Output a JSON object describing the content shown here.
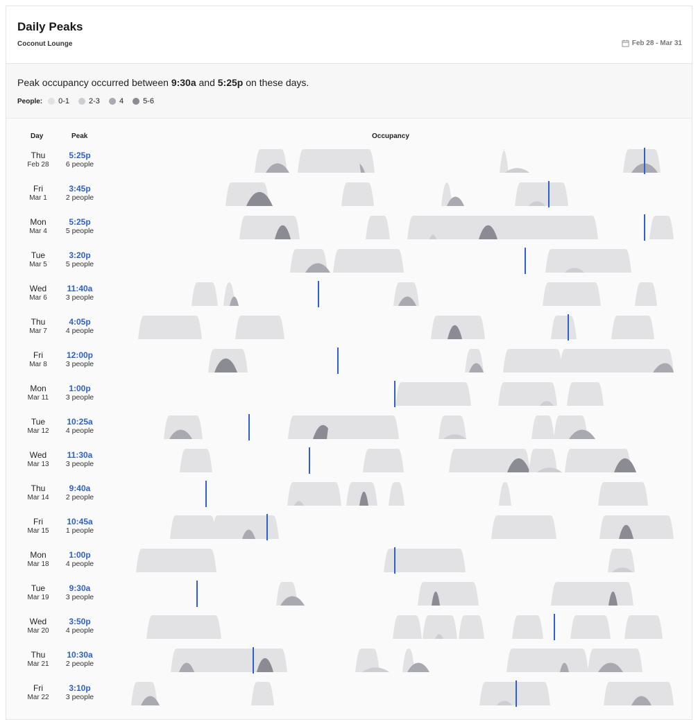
{
  "header": {
    "title": "Daily Peaks",
    "subtitle": "Coconut Lounge",
    "date_range": "Feb 28 - Mar 31",
    "calendar_icon": "calendar-icon"
  },
  "summary": {
    "prefix": "Peak occupancy occurred between",
    "start": "9:30a",
    "middle": "and",
    "end": "5:25p",
    "suffix": "on these days."
  },
  "legend": {
    "label": "People:",
    "items": [
      {
        "label": "0-1",
        "color": "#e2e2e4"
      },
      {
        "label": "2-3",
        "color": "#cdced2"
      },
      {
        "label": "4",
        "color": "#a9aab1"
      },
      {
        "label": "5-6",
        "color": "#8b8c93"
      }
    ]
  },
  "table": {
    "col_day": "Day",
    "col_peak": "Peak",
    "col_occupancy": "Occupancy"
  },
  "colors": {
    "accent": "#2b5fd9",
    "peak_marker": "#2b5fd9"
  },
  "rows": [
    {
      "day": "Thu",
      "date": "Feb 28",
      "peak_time": "5:25p",
      "peak_people": "6 people"
    },
    {
      "day": "Fri",
      "date": "Mar 1",
      "peak_time": "3:45p",
      "peak_people": "2 people"
    },
    {
      "day": "Mon",
      "date": "Mar 4",
      "peak_time": "5:25p",
      "peak_people": "5 people"
    },
    {
      "day": "Tue",
      "date": "Mar 5",
      "peak_time": "3:20p",
      "peak_people": "5 people"
    },
    {
      "day": "Wed",
      "date": "Mar 6",
      "peak_time": "11:40a",
      "peak_people": "3 people"
    },
    {
      "day": "Thu",
      "date": "Mar 7",
      "peak_time": "4:05p",
      "peak_people": "4 people"
    },
    {
      "day": "Fri",
      "date": "Mar 8",
      "peak_time": "12:00p",
      "peak_people": "3 people"
    },
    {
      "day": "Mon",
      "date": "Mar 11",
      "peak_time": "1:00p",
      "peak_people": "3 people"
    },
    {
      "day": "Tue",
      "date": "Mar 12",
      "peak_time": "10:25a",
      "peak_people": "4 people"
    },
    {
      "day": "Wed",
      "date": "Mar 13",
      "peak_time": "11:30a",
      "peak_people": "3 people"
    },
    {
      "day": "Thu",
      "date": "Mar 14",
      "peak_time": "9:40a",
      "peak_people": "2 people"
    },
    {
      "day": "Fri",
      "date": "Mar 15",
      "peak_time": "10:45a",
      "peak_people": "1 people"
    },
    {
      "day": "Mon",
      "date": "Mar 18",
      "peak_time": "1:00p",
      "peak_people": "4 people"
    },
    {
      "day": "Tue",
      "date": "Mar 19",
      "peak_time": "9:30a",
      "peak_people": "3 people"
    },
    {
      "day": "Wed",
      "date": "Mar 20",
      "peak_time": "3:50p",
      "peak_people": "4 people"
    },
    {
      "day": "Thu",
      "date": "Mar 21",
      "peak_time": "10:30a",
      "peak_people": "2 people"
    },
    {
      "day": "Fri",
      "date": "Mar 22",
      "peak_time": "3:10p",
      "peak_people": "3 people"
    }
  ]
}
